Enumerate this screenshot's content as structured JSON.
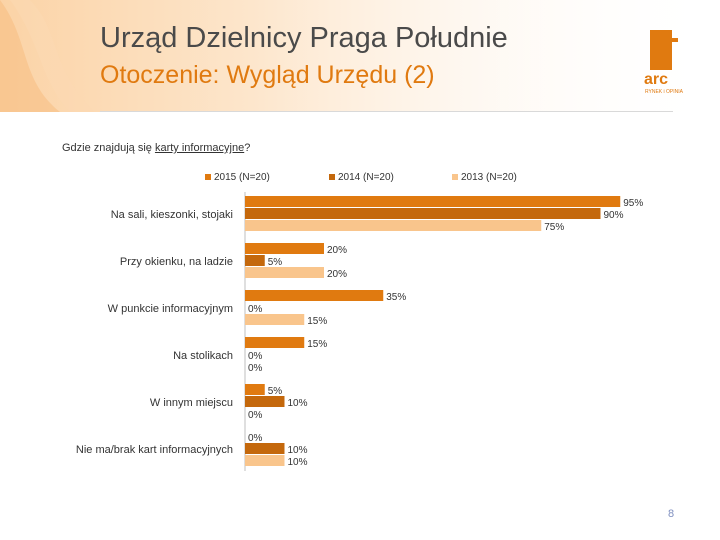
{
  "header": {
    "title": "Urząd Dzielnicy Praga Południe",
    "subtitle": "Otoczenie: Wygląd Urzędu (2)",
    "logo_text": "arc",
    "logo_subtext": "RYNEK i OPINIA",
    "logo_color": "#e07a10"
  },
  "question": {
    "prefix": "Gdzie znajdują się ",
    "underlined": "karty informacyjne",
    "suffix": "?"
  },
  "colors": {
    "accent": "#e07a10",
    "text": "#4a4a4a",
    "header_bg": "#fdecd6"
  },
  "page_number": "8",
  "chart_data": {
    "type": "bar",
    "orientation": "horizontal",
    "categories": [
      "Na sali, kieszonki, stojaki",
      "Przy okienku, na ladzie",
      "W punkcie informacyjnym",
      "Na stolikach",
      "W innym miejscu",
      "Nie ma/brak kart informacyjnych"
    ],
    "series": [
      {
        "name": "2015 (N=20)",
        "color": "#e07a10",
        "values": [
          95,
          20,
          35,
          15,
          5,
          0
        ]
      },
      {
        "name": "2014 (N=20)",
        "color": "#c4680c",
        "values": [
          90,
          5,
          0,
          0,
          10,
          10
        ]
      },
      {
        "name": "2013 (N=20)",
        "color": "#f9c58c",
        "values": [
          75,
          20,
          15,
          0,
          0,
          10
        ]
      }
    ],
    "value_suffix": "%",
    "xlim": [
      0,
      100
    ],
    "legend_position": "top",
    "grid": false
  }
}
